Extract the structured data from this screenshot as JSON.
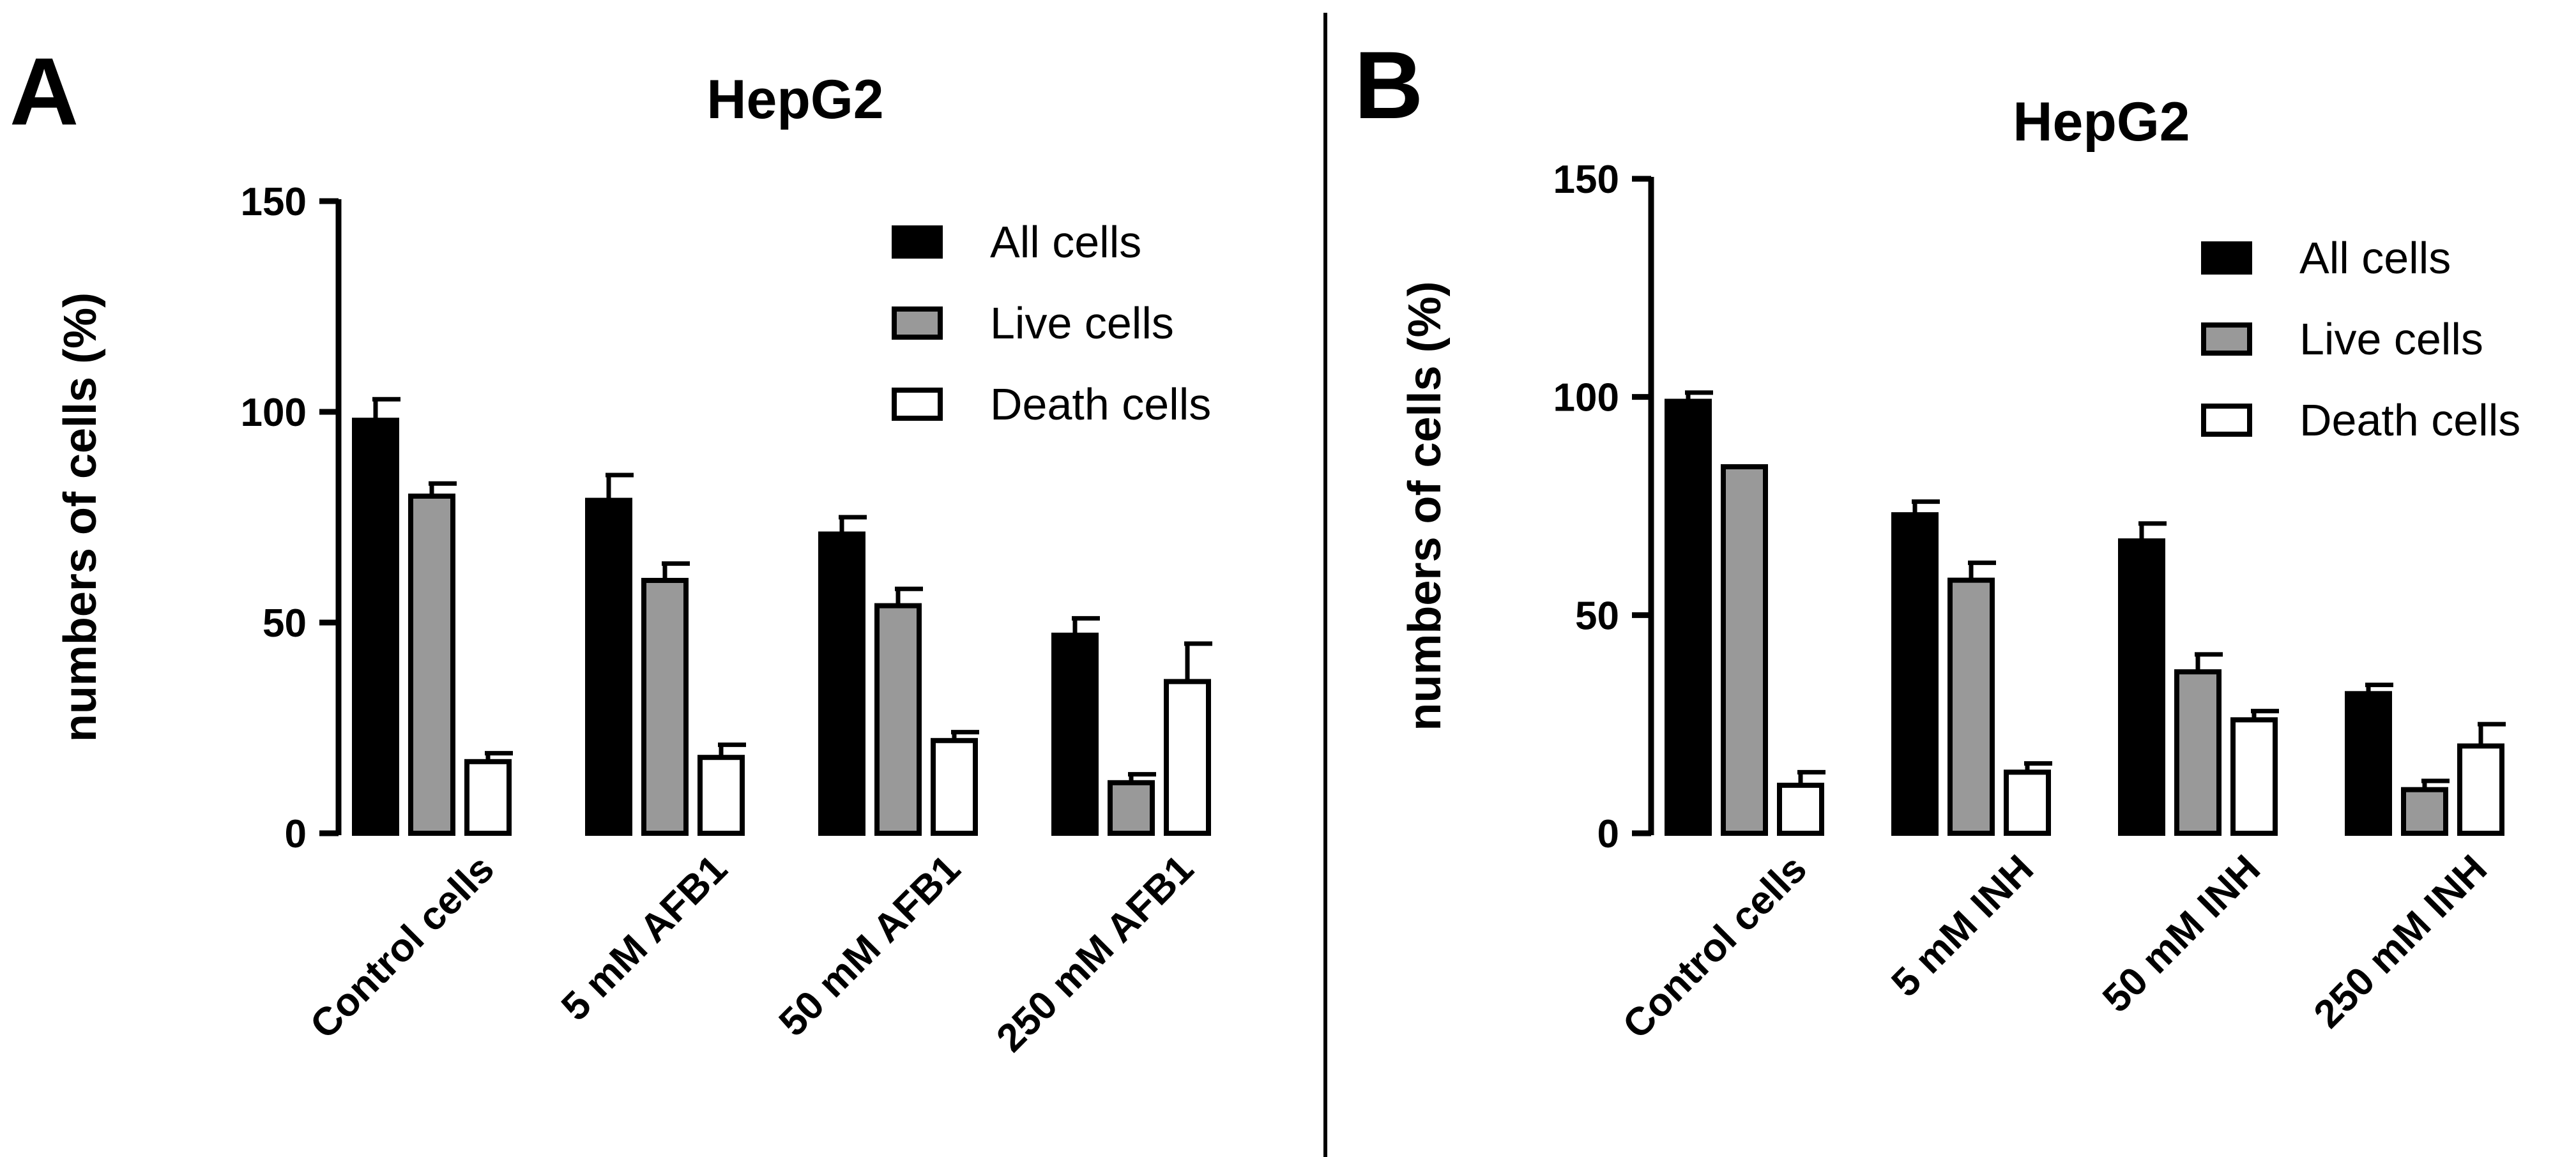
{
  "divider": true,
  "chart_data": [
    {
      "panel": "A",
      "type": "bar",
      "title": "HepG2",
      "xlabel": "",
      "ylabel": "numbers of cells (%)",
      "ylim": [
        0,
        150
      ],
      "yticks": [
        0,
        50,
        100,
        150
      ],
      "categories": [
        "Control cells",
        "5 mM AFB1",
        "50 mM AFB1",
        "250 mM AFB1"
      ],
      "series": [
        {
          "name": "All cells",
          "color": "#000000",
          "values": [
            98,
            79,
            71,
            47
          ],
          "errors": [
            5,
            6,
            4,
            4
          ]
        },
        {
          "name": "Live cells",
          "color": "#999999",
          "values": [
            80,
            60,
            54,
            12
          ],
          "errors": [
            3,
            4,
            4,
            2
          ]
        },
        {
          "name": "Death cells",
          "color": "#ffffff",
          "values": [
            17,
            18,
            22,
            36
          ],
          "errors": [
            2,
            3,
            2,
            9
          ]
        }
      ],
      "legend": "top-right",
      "grid": false
    },
    {
      "panel": "B",
      "type": "bar",
      "title": "HepG2",
      "xlabel": "",
      "ylabel": "numbers of cells (%)",
      "ylim": [
        0,
        150
      ],
      "yticks": [
        0,
        50,
        100,
        150
      ],
      "categories": [
        "Control cells",
        "5 mM INH",
        "50 mM INH",
        "250 mM INH"
      ],
      "series": [
        {
          "name": "All cells",
          "color": "#000000",
          "values": [
            99,
            73,
            67,
            32
          ],
          "errors": [
            2,
            3,
            4,
            2
          ]
        },
        {
          "name": "Live cells",
          "color": "#999999",
          "values": [
            84,
            58,
            37,
            10
          ],
          "errors": [
            0,
            4,
            4,
            2
          ]
        },
        {
          "name": "Death cells",
          "color": "#ffffff",
          "values": [
            11,
            14,
            26,
            20
          ],
          "errors": [
            3,
            2,
            2,
            5
          ]
        }
      ],
      "legend": "top-right",
      "grid": false
    }
  ]
}
